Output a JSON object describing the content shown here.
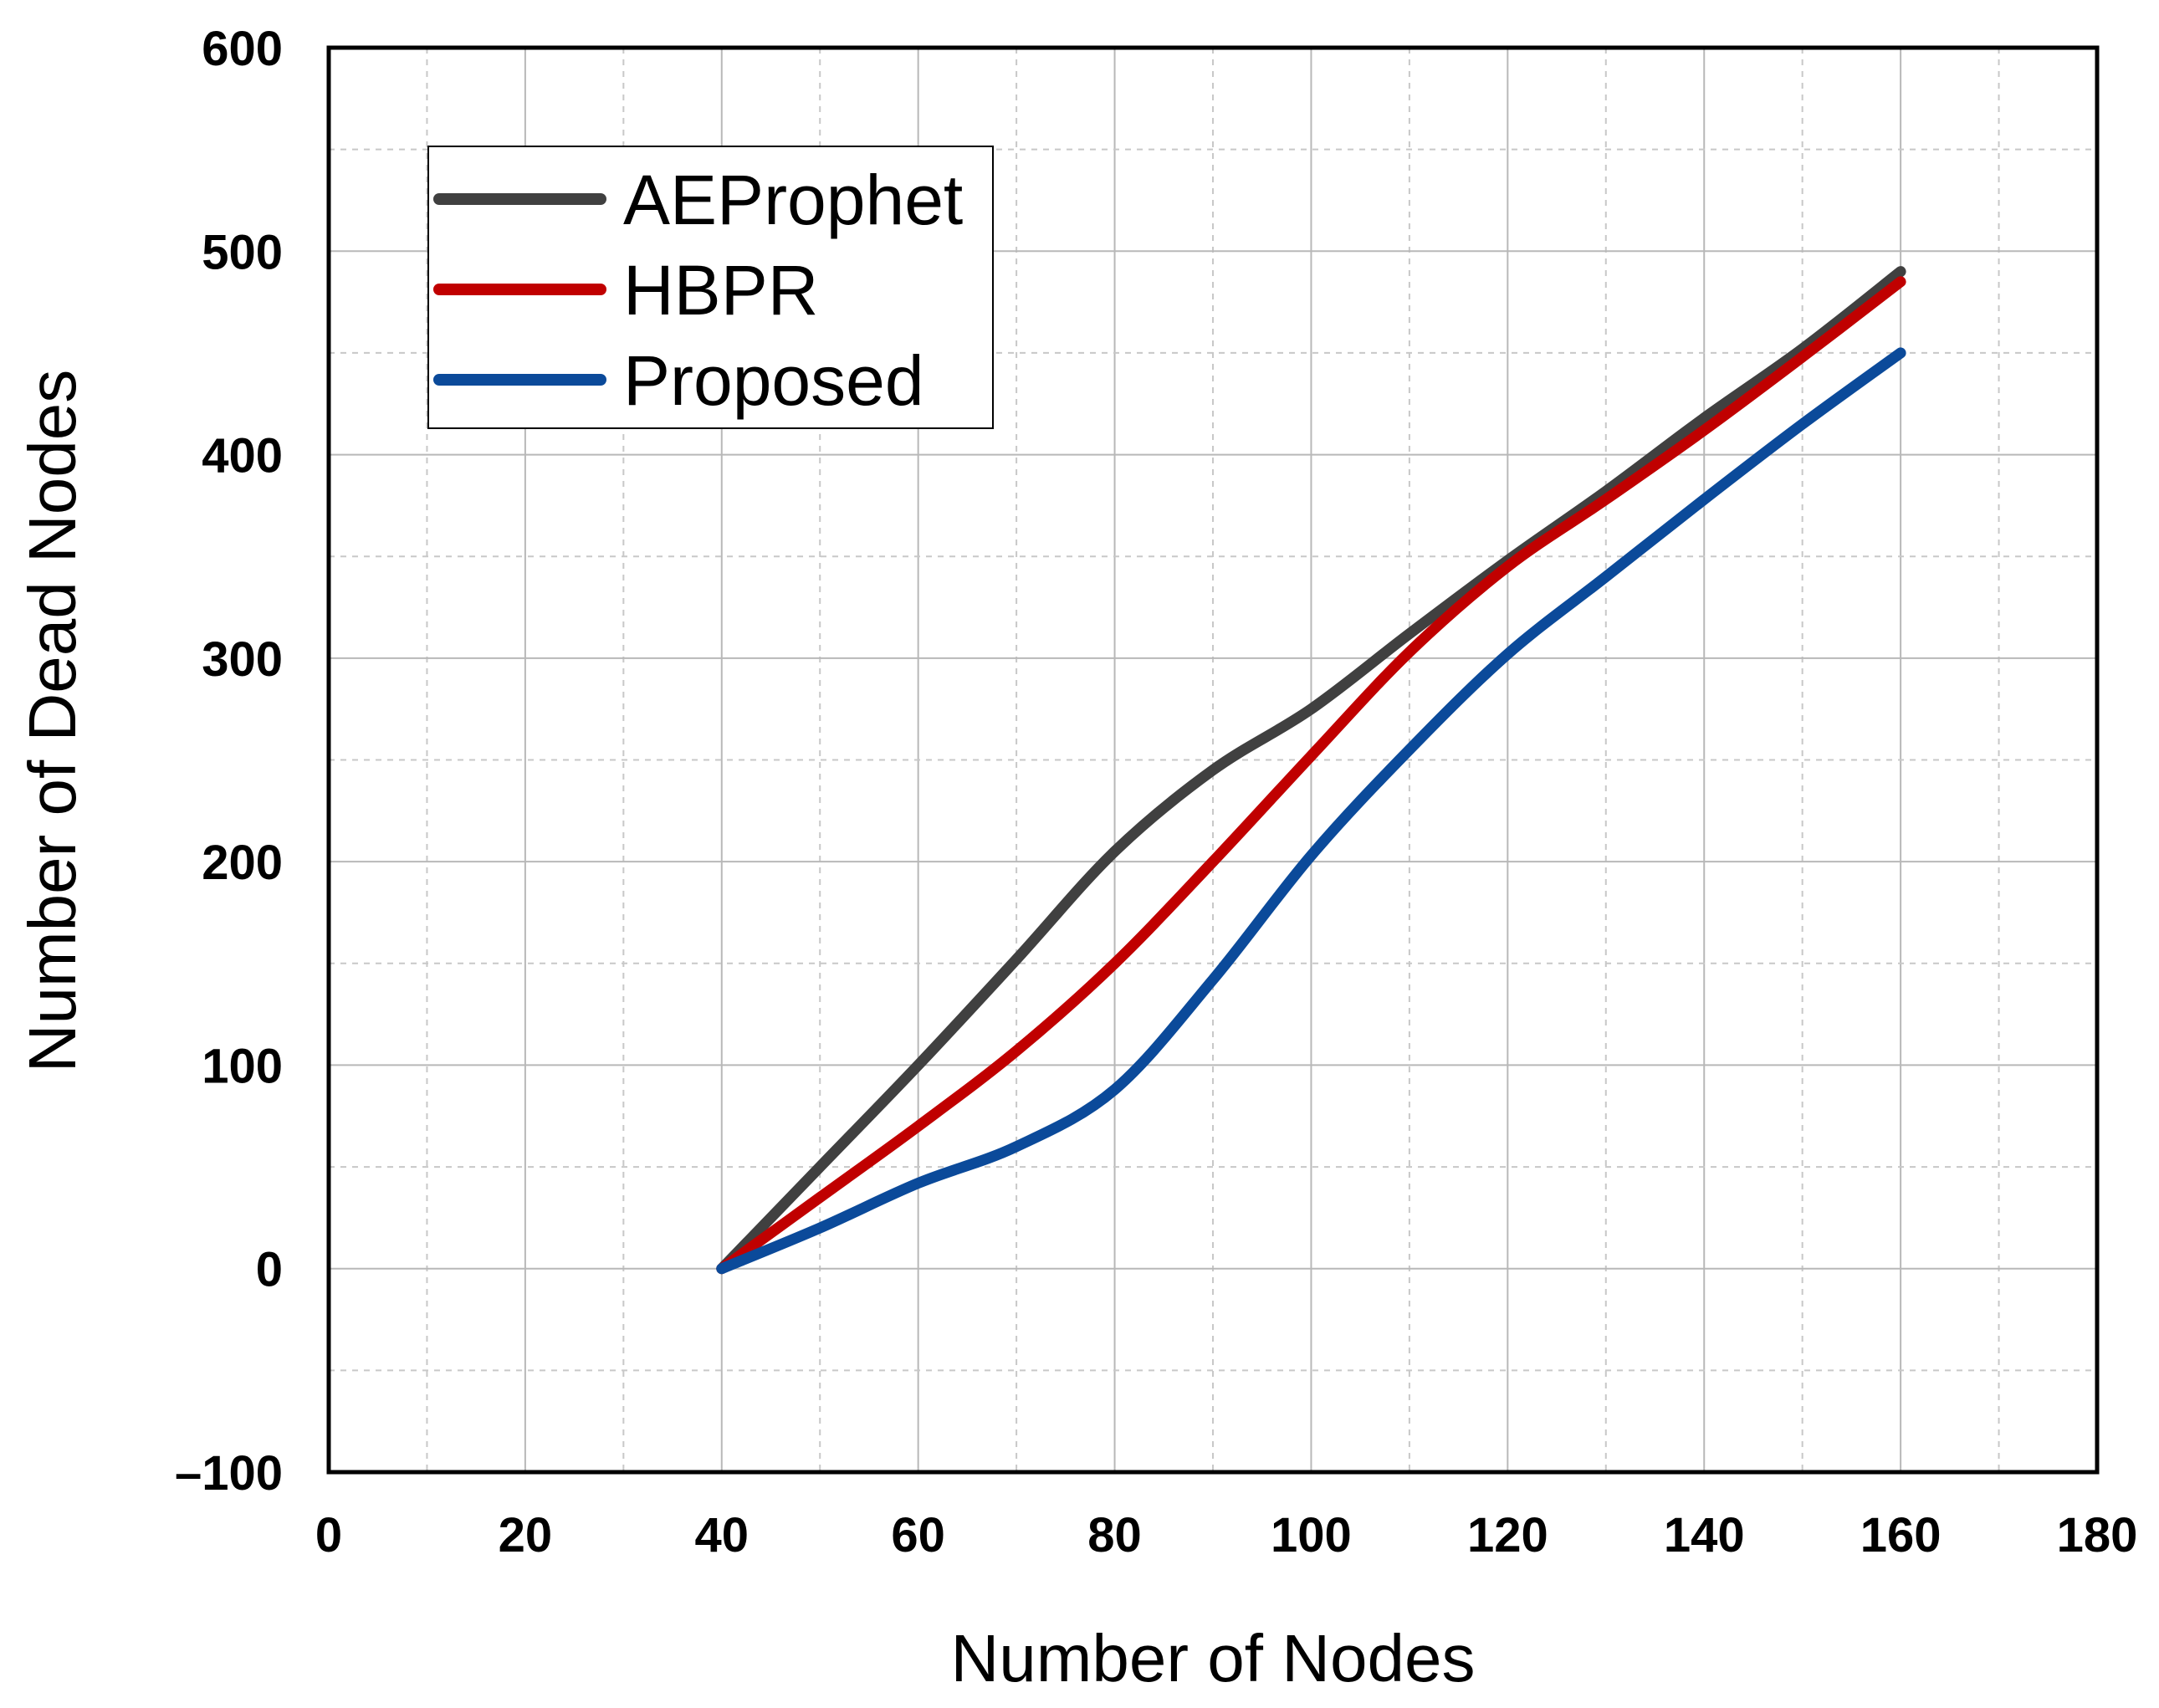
{
  "chart_data": {
    "type": "line",
    "title": "",
    "xlabel": "Number of Nodes",
    "ylabel": "Number of Dead Nodes",
    "xlim": [
      0,
      180
    ],
    "ylim": [
      -100,
      600
    ],
    "x_ticks": [
      0,
      20,
      40,
      60,
      80,
      100,
      120,
      140,
      160,
      180
    ],
    "y_ticks": [
      -100,
      0,
      100,
      200,
      300,
      400,
      500,
      600
    ],
    "x_tick_labels": [
      "0",
      "20",
      "40",
      "60",
      "80",
      "100",
      "120",
      "140",
      "160",
      "180"
    ],
    "y_tick_labels": [
      "–100",
      "0",
      "100",
      "200",
      "300",
      "400",
      "500",
      "600"
    ],
    "grid": true,
    "legend_position": "top-left",
    "series": [
      {
        "name": "AEProphet",
        "color": "#404040",
        "x": [
          40,
          50,
          60,
          70,
          80,
          90,
          100,
          110,
          120,
          130,
          140,
          150,
          160
        ],
        "y": [
          0,
          50,
          100,
          152,
          205,
          245,
          275,
          312,
          348,
          382,
          418,
          452,
          490
        ]
      },
      {
        "name": "HBPR",
        "color": "#c00000",
        "x": [
          40,
          50,
          60,
          70,
          80,
          90,
          100,
          110,
          120,
          130,
          140,
          150,
          160
        ],
        "y": [
          0,
          35,
          70,
          107,
          150,
          200,
          252,
          303,
          345,
          378,
          412,
          448,
          485
        ]
      },
      {
        "name": "Proposed",
        "color": "#0b4a9a",
        "x": [
          40,
          50,
          60,
          70,
          80,
          90,
          100,
          110,
          120,
          130,
          140,
          150,
          160
        ],
        "y": [
          0,
          20,
          42,
          60,
          88,
          142,
          203,
          255,
          302,
          340,
          378,
          415,
          450
        ]
      }
    ]
  }
}
